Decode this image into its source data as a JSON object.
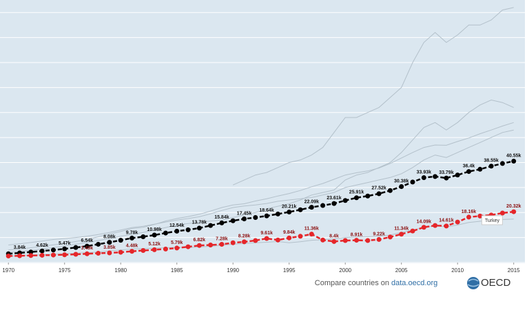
{
  "chart_data": {
    "type": "line",
    "x": [
      1970,
      1971,
      1972,
      1973,
      1974,
      1975,
      1976,
      1977,
      1978,
      1979,
      1980,
      1981,
      1982,
      1983,
      1984,
      1985,
      1986,
      1987,
      1988,
      1989,
      1990,
      1991,
      1992,
      1993,
      1994,
      1995,
      1996,
      1997,
      1998,
      1999,
      2000,
      2001,
      2002,
      2003,
      2004,
      2005,
      2006,
      2007,
      2008,
      2009,
      2010,
      2011,
      2012,
      2013,
      2014,
      2015
    ],
    "xlim": [
      1969.25,
      2016
    ],
    "xticks": [
      1970,
      1975,
      1980,
      1985,
      1990,
      1995,
      2000,
      2005,
      2010,
      2015
    ],
    "ylim": [
      0,
      105000
    ],
    "yticks": [
      0,
      10000,
      20000,
      30000,
      40000,
      50000,
      60000,
      70000,
      80000,
      90000,
      100000
    ],
    "grid": true,
    "series": [
      {
        "color": "#b3c0ca",
        "values": [
          null,
          null,
          null,
          null,
          null,
          null,
          null,
          null,
          null,
          null,
          null,
          null,
          null,
          null,
          null,
          null,
          null,
          null,
          null,
          null,
          31000,
          33000,
          35000,
          36000,
          38000,
          40000,
          41000,
          43000,
          46000,
          52000,
          58000,
          58000,
          60000,
          62000,
          66000,
          70000,
          80000,
          88000,
          92000,
          88000,
          91000,
          95000,
          95000,
          97000,
          101000,
          102000
        ]
      },
      {
        "color": "#b3c0ca",
        "values": [
          4000,
          4400,
          4900,
          5400,
          6000,
          6600,
          7300,
          8000,
          8800,
          9600,
          10500,
          11300,
          12000,
          13000,
          14000,
          15000,
          15600,
          16000,
          16600,
          17000,
          18000,
          19000,
          20000,
          21500,
          22500,
          23500,
          25000,
          27000,
          28000,
          29000,
          33000,
          35000,
          36000,
          38000,
          40000,
          44000,
          49000,
          54000,
          56000,
          53000,
          56000,
          60000,
          63000,
          65000,
          64000,
          62000
        ]
      },
      {
        "color": "#b3c0ca",
        "values": [
          7000,
          7500,
          8000,
          8600,
          9200,
          9600,
          10000,
          10500,
          11200,
          12000,
          13000,
          14000,
          14500,
          15300,
          16200,
          17000,
          17600,
          18300,
          19500,
          20800,
          22000,
          22600,
          23000,
          23600,
          24500,
          25000,
          25500,
          26000,
          27000,
          28000,
          30000,
          31000,
          32000,
          33000,
          34000,
          35500,
          38000,
          41000,
          43000,
          42000,
          44000,
          46000,
          48000,
          50000,
          52000,
          53000
        ]
      },
      {
        "color": "#b3c0ca",
        "values": [
          5000,
          5400,
          5900,
          6500,
          7100,
          7600,
          8400,
          9200,
          10300,
          11400,
          12400,
          13600,
          14100,
          15200,
          16600,
          17600,
          18400,
          19300,
          20600,
          22000,
          23000,
          23500,
          24600,
          25500,
          26600,
          27600,
          28800,
          30300,
          31600,
          33300,
          35000,
          35900,
          36600,
          37800,
          39600,
          41800,
          44000,
          46000,
          47000,
          46900,
          48400,
          49800,
          51500,
          53000,
          54600,
          56000
        ]
      },
      {
        "color": "#b3c0ca",
        "values": [
          2500,
          2700,
          2900,
          3100,
          3300,
          3500,
          3700,
          3900,
          4200,
          4600,
          5000,
          5400,
          5600,
          5700,
          5900,
          6100,
          6000,
          6200,
          6500,
          6900,
          7300,
          7600,
          7900,
          8100,
          8400,
          7900,
          8300,
          8900,
          9100,
          9400,
          10000,
          10200,
          10300,
          10500,
          11000,
          12000,
          13000,
          14000,
          14800,
          14200,
          15000,
          16000,
          16500,
          17000,
          17200,
          17400
        ]
      },
      {
        "color": "#000000",
        "values": [
          3500,
          3840,
          4200,
          4620,
          5000,
          5470,
          6000,
          6540,
          7300,
          8080,
          8900,
          9780,
          10300,
          10980,
          11800,
          12540,
          13100,
          13780,
          14800,
          15840,
          16700,
          17450,
          18000,
          18640,
          19400,
          20210,
          21100,
          22090,
          22800,
          23610,
          24800,
          25910,
          26600,
          27520,
          28800,
          30380,
          32200,
          33930,
          34400,
          33790,
          35000,
          36400,
          37300,
          38550,
          39600,
          40550
        ],
        "value_labels": [
          null,
          "3.84k",
          null,
          "4.62k",
          null,
          "5.47k",
          null,
          "6.54k",
          null,
          "8.08k",
          null,
          "9.78k",
          null,
          "10.98k",
          null,
          "12.54k",
          null,
          "13.78k",
          null,
          "15.84k",
          null,
          "17.45k",
          null,
          "18.64k",
          null,
          "20.21k",
          null,
          "22.09k",
          null,
          "23.61k",
          null,
          "25.91k",
          null,
          "27.52k",
          null,
          "30.38k",
          null,
          "33.93k",
          null,
          "33.79k",
          null,
          "36.4k",
          null,
          "38.55k",
          null,
          "40.55k"
        ]
      },
      {
        "name": "Turkey",
        "color": "#e5262a",
        "values": [
          2600,
          2700,
          2800,
          2900,
          3000,
          3100,
          3300,
          3490,
          3700,
          3850,
          4100,
          4480,
          4800,
          5120,
          5400,
          5790,
          6300,
          6820,
          7000,
          7280,
          7900,
          8280,
          8800,
          9610,
          9000,
          9840,
          10500,
          11360,
          9000,
          8400,
          8800,
          8910,
          8800,
          9220,
          10200,
          11340,
          12600,
          14090,
          14800,
          14610,
          16200,
          18160,
          18600,
          19000,
          19800,
          20320
        ],
        "value_labels": [
          null,
          null,
          null,
          null,
          null,
          null,
          null,
          "3.49k",
          null,
          "3.85k",
          null,
          "4.48k",
          null,
          "5.12k",
          null,
          "5.79k",
          null,
          "6.82k",
          null,
          "7.28k",
          null,
          "8.28k",
          null,
          "9.61k",
          null,
          "9.84k",
          null,
          "11.36k",
          null,
          "8.4k",
          null,
          "8.91k",
          null,
          "9.22k",
          null,
          "11.34k",
          null,
          "14.09k",
          null,
          "14.61k",
          null,
          "18.16k",
          null,
          null,
          null,
          "20.32k"
        ]
      }
    ]
  },
  "footer": {
    "text": "Compare countries on",
    "link": "data.oecd.org",
    "logo": "OECD"
  }
}
